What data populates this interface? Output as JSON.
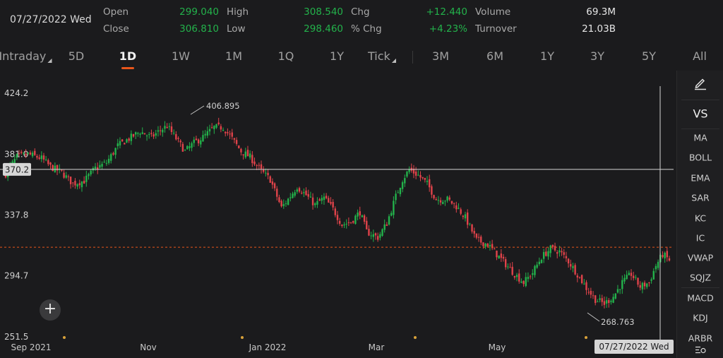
{
  "header": {
    "date": "07/27/2022 Wed",
    "quotes": [
      {
        "label": "Open",
        "value": "299.040",
        "color": "green"
      },
      {
        "label": "High",
        "value": "308.540",
        "color": "green"
      },
      {
        "label": "Chg",
        "value": "+12.440",
        "color": "green"
      },
      {
        "label": "Volume",
        "value": "69.3M",
        "color": "white"
      },
      {
        "label": "Close",
        "value": "306.810",
        "color": "green"
      },
      {
        "label": "Low",
        "value": "298.460",
        "color": "green"
      },
      {
        "label": "% Chg",
        "value": "+4.23%",
        "color": "green"
      },
      {
        "label": "Turnover",
        "value": "21.03B",
        "color": "white"
      }
    ]
  },
  "tabs": [
    {
      "label": "Intraday",
      "dropdown": true
    },
    {
      "label": "5D"
    },
    {
      "label": "1D",
      "active": true
    },
    {
      "label": "1W"
    },
    {
      "label": "1M"
    },
    {
      "label": "1Q"
    },
    {
      "label": "1Y"
    },
    {
      "label": "Tick",
      "dropdown": true
    },
    {
      "label": "3M"
    },
    {
      "label": "6M"
    },
    {
      "label": "1Y"
    },
    {
      "label": "3Y"
    },
    {
      "label": "5Y"
    },
    {
      "label": "All"
    }
  ],
  "sidebar": {
    "draw_icon": "pencil-icon",
    "vs_label": "VS",
    "indicators": [
      "MA",
      "BOLL",
      "EMA",
      "SAR",
      "KC",
      "IC",
      "VWAP",
      "SQJZ",
      "MACD",
      "KDJ",
      "ARBR"
    ],
    "settings_icon": "settings-icon"
  },
  "add_button": "+",
  "colors": {
    "up": "#23b24b",
    "down": "#e0434a",
    "accent": "#e8561b",
    "background": "#1b1b1d"
  },
  "chart_data": {
    "type": "candlestick",
    "y_ticks": [
      "424.2",
      "381.0",
      "337.8",
      "294.7",
      "251.5"
    ],
    "y_tick_values": [
      424.2,
      381.0,
      337.8,
      294.7,
      251.5
    ],
    "ylim": [
      251.5,
      424.2
    ],
    "x_ticks": [
      "Sep 2021",
      "Nov",
      "Jan 2022",
      "Mar",
      "May"
    ],
    "crosshair": {
      "price_label": "370.2",
      "price": 370.2,
      "date_label": "07/27/2022 Wed"
    },
    "max_annotation": "406.895",
    "min_annotation": "268.763",
    "last_close_line": 315.0,
    "close_path": [
      [
        0,
        367
      ],
      [
        5,
        379
      ],
      [
        10,
        381
      ],
      [
        16,
        378
      ],
      [
        20,
        372
      ],
      [
        25,
        368
      ],
      [
        30,
        360
      ],
      [
        35,
        362
      ],
      [
        40,
        371
      ],
      [
        45,
        375
      ],
      [
        50,
        387
      ],
      [
        55,
        392
      ],
      [
        60,
        397
      ],
      [
        65,
        393
      ],
      [
        69,
        398
      ],
      [
        72,
        401
      ],
      [
        76,
        392
      ],
      [
        80,
        383
      ],
      [
        84,
        389
      ],
      [
        88,
        393
      ],
      [
        93,
        400
      ],
      [
        97,
        400
      ],
      [
        101,
        392
      ],
      [
        105,
        383
      ],
      [
        109,
        379
      ],
      [
        114,
        369
      ],
      [
        118,
        363
      ],
      [
        123,
        343
      ],
      [
        126,
        349
      ],
      [
        130,
        358
      ],
      [
        134,
        352
      ],
      [
        138,
        345
      ],
      [
        142,
        350
      ],
      [
        146,
        342
      ],
      [
        150,
        331
      ],
      [
        154,
        333
      ],
      [
        158,
        340
      ],
      [
        161,
        326
      ],
      [
        166,
        322
      ],
      [
        170,
        332
      ],
      [
        174,
        351
      ],
      [
        177,
        363
      ],
      [
        180,
        370
      ],
      [
        184,
        366
      ],
      [
        188,
        360
      ],
      [
        192,
        349
      ],
      [
        197,
        349
      ],
      [
        201,
        344
      ],
      [
        205,
        336
      ],
      [
        210,
        320
      ],
      [
        215,
        317
      ],
      [
        219,
        310
      ],
      [
        223,
        303
      ],
      [
        227,
        296
      ],
      [
        231,
        290
      ],
      [
        235,
        297
      ],
      [
        239,
        308
      ],
      [
        243,
        314
      ],
      [
        247,
        312
      ],
      [
        251,
        305
      ],
      [
        255,
        296
      ],
      [
        259,
        286
      ],
      [
        263,
        278
      ],
      [
        267,
        275
      ],
      [
        271,
        280
      ],
      [
        275,
        290
      ],
      [
        279,
        296
      ],
      [
        283,
        287
      ],
      [
        287,
        290
      ],
      [
        290,
        302
      ],
      [
        293,
        310
      ],
      [
        296,
        306
      ]
    ]
  }
}
